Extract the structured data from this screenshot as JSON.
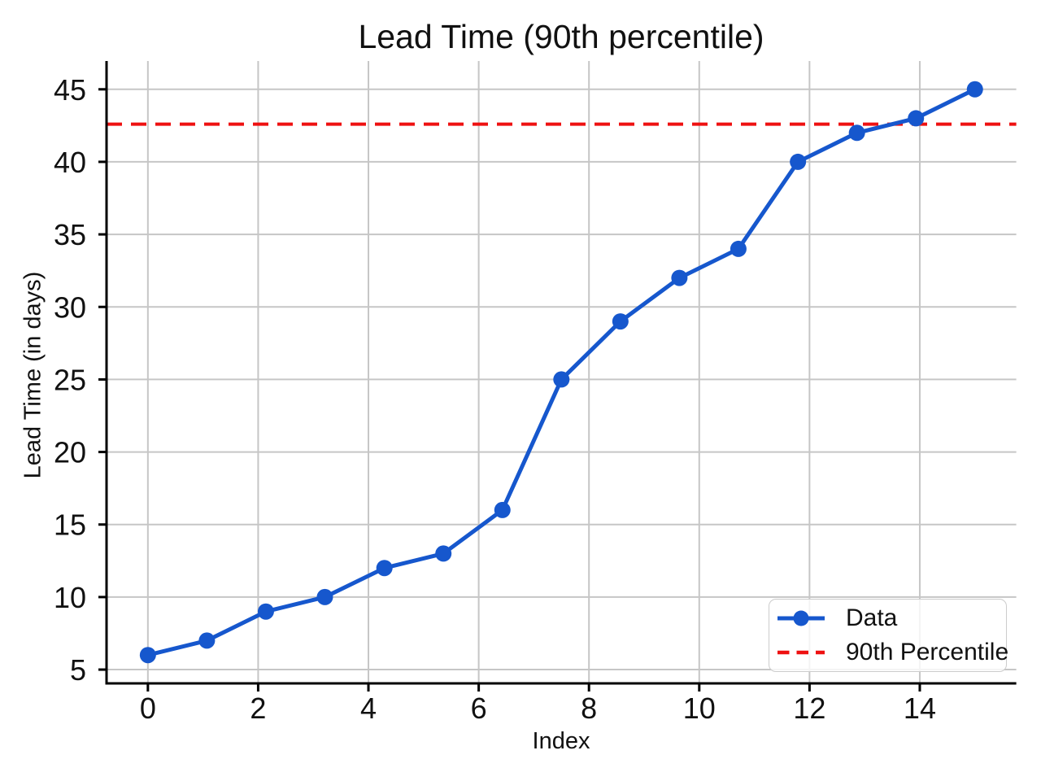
{
  "figure": {
    "title": "Lead Time (90th percentile)",
    "xlabel": "Index",
    "ylabel": "Lead Time (in days)"
  },
  "legend": {
    "position": "lower right",
    "items": [
      {
        "label": "Data",
        "style": "solid-line-with-marker",
        "color": "#1657cd"
      },
      {
        "label": "90th Percentile",
        "style": "dashed-line",
        "color": "#ee1111"
      }
    ]
  },
  "colors": {
    "data_line": "#1657cd",
    "percentile_line": "#ee1111",
    "grid": "#c6c6c6",
    "spine": "#000000",
    "text": "#111111"
  },
  "chart_data": {
    "type": "line",
    "title": "Lead Time (90th percentile)",
    "xlabel": "Index",
    "ylabel": "Lead Time (in days)",
    "x": [
      0,
      1.07,
      2.14,
      3.21,
      4.29,
      5.36,
      6.43,
      7.5,
      8.57,
      9.64,
      10.71,
      11.79,
      12.86,
      13.93,
      15
    ],
    "series": [
      {
        "name": "Data",
        "values": [
          6,
          7,
          9,
          10,
          12,
          13,
          16,
          25,
          29,
          32,
          34,
          40,
          42,
          43,
          45
        ]
      },
      {
        "name": "90th Percentile",
        "horizontal_value": 42.6
      }
    ],
    "x_ticks": [
      0,
      2,
      4,
      6,
      8,
      10,
      12,
      14
    ],
    "y_ticks": [
      5,
      10,
      15,
      20,
      25,
      30,
      35,
      40,
      45
    ],
    "xlim": [
      -0.75,
      15.75
    ],
    "ylim": [
      4.05,
      46.95
    ],
    "grid": true,
    "legend_position": "lower right"
  }
}
